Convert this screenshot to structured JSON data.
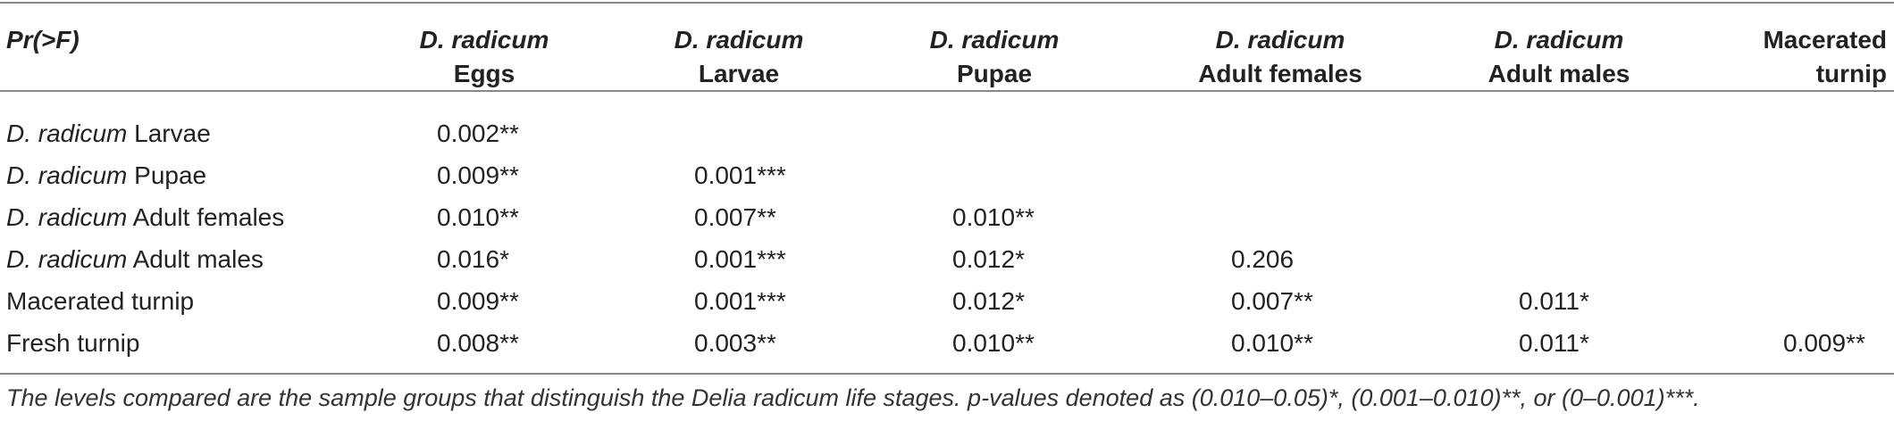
{
  "table": {
    "corner": "Pr(>F)",
    "columns": [
      {
        "species": "D. radicum",
        "label": "Eggs"
      },
      {
        "species": "D. radicum",
        "label": "Larvae"
      },
      {
        "species": "D. radicum",
        "label": "Pupae"
      },
      {
        "species": "D. radicum",
        "label": "Adult females"
      },
      {
        "species": "D. radicum",
        "label": "Adult males"
      },
      {
        "species": "Macerated",
        "label": "turnip"
      }
    ],
    "rows": [
      {
        "species": "D. radicum",
        "label": " Larvae",
        "cells": [
          "0.002**",
          "",
          "",
          "",
          "",
          ""
        ]
      },
      {
        "species": "D. radicum",
        "label": " Pupae",
        "cells": [
          "0.009**",
          "0.001***",
          "",
          "",
          "",
          ""
        ]
      },
      {
        "species": "D. radicum",
        "label": " Adult females",
        "cells": [
          "0.010**",
          "0.007**",
          "0.010**",
          "",
          "",
          ""
        ]
      },
      {
        "species": "D. radicum",
        "label": " Adult males",
        "cells": [
          "0.016*",
          "0.001***",
          "0.012*",
          "0.206",
          "",
          ""
        ]
      },
      {
        "species": "",
        "label": "Macerated turnip",
        "cells": [
          "0.009**",
          "0.001***",
          "0.012*",
          "0.007**",
          "0.011*",
          ""
        ]
      },
      {
        "species": "",
        "label": "Fresh turnip",
        "cells": [
          "0.008**",
          "0.003**",
          "0.010**",
          "0.010**",
          "0.011*",
          "0.009**"
        ]
      }
    ]
  },
  "footnote": "The levels compared are the sample groups that distinguish the Delia radicum life stages. p-values denoted as (0.010–0.05)*, (0.001–0.010)**, or (0–0.001)***."
}
